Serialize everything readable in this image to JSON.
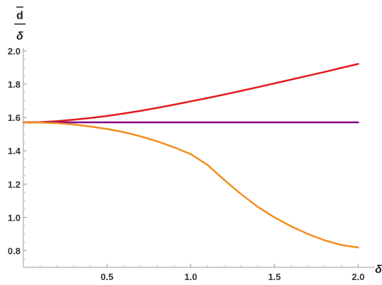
{
  "chart_data": {
    "type": "line",
    "title": "",
    "xlabel": "δ",
    "ylabel": {
      "numerator": "d",
      "denominator": "δ"
    },
    "xlim": [
      0,
      2.1
    ],
    "ylim": [
      0.7,
      2.0
    ],
    "x_ticks": [
      {
        "value": 0.5,
        "label": "0.5"
      },
      {
        "value": 1.0,
        "label": "1.0"
      },
      {
        "value": 1.5,
        "label": "1.5"
      },
      {
        "value": 2.0,
        "label": "2.0"
      }
    ],
    "y_ticks": [
      {
        "value": 0.8,
        "label": "0.8"
      },
      {
        "value": 1.0,
        "label": "1.0"
      },
      {
        "value": 1.2,
        "label": "1.2"
      },
      {
        "value": 1.4,
        "label": "1.4"
      },
      {
        "value": 1.6,
        "label": "1.6"
      },
      {
        "value": 1.8,
        "label": "1.8"
      },
      {
        "value": 2.0,
        "label": "2.0"
      }
    ],
    "grid": false,
    "legend": "none",
    "series": [
      {
        "color": "#e31a1c",
        "x": [
          0.0,
          0.1,
          0.2,
          0.3,
          0.4,
          0.5,
          0.6,
          0.7,
          0.8,
          0.9,
          1.0,
          1.1,
          1.2,
          1.3,
          1.4,
          1.5,
          1.6,
          1.7,
          1.8,
          1.9,
          2.0
        ],
        "y": [
          1.571,
          1.572,
          1.578,
          1.587,
          1.597,
          1.609,
          1.624,
          1.64,
          1.658,
          1.677,
          1.697,
          1.717,
          1.738,
          1.76,
          1.782,
          1.805,
          1.828,
          1.851,
          1.874,
          1.898,
          1.922
        ]
      },
      {
        "color": "#800080",
        "x": [
          0.0,
          2.0
        ],
        "y": [
          1.571,
          1.571
        ]
      },
      {
        "color": "#f28e1c",
        "x": [
          0.0,
          0.1,
          0.2,
          0.3,
          0.4,
          0.5,
          0.6,
          0.7,
          0.8,
          0.9,
          1.0,
          1.1,
          1.2,
          1.3,
          1.4,
          1.5,
          1.6,
          1.7,
          1.8,
          1.9,
          2.0
        ],
        "y": [
          1.571,
          1.57,
          1.566,
          1.558,
          1.546,
          1.531,
          1.512,
          1.487,
          1.457,
          1.421,
          1.38,
          1.315,
          1.225,
          1.14,
          1.063,
          1.0,
          0.946,
          0.9,
          0.862,
          0.834,
          0.819
        ]
      }
    ]
  }
}
